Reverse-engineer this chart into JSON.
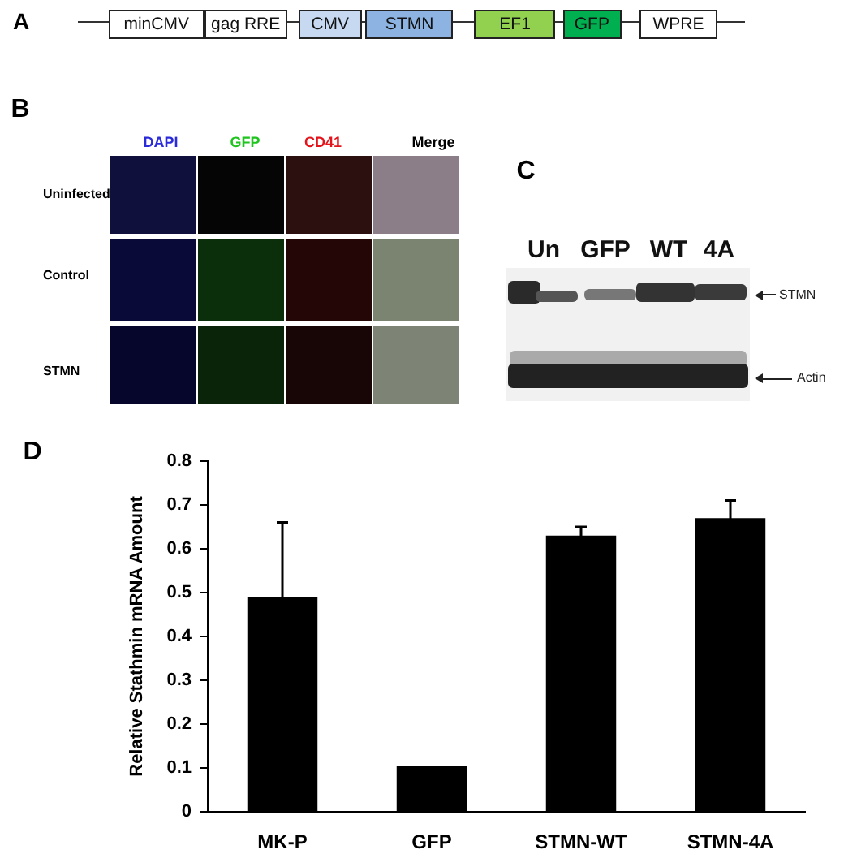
{
  "chart_data": [
    {
      "type": "other",
      "title": "A",
      "annotations": [
        "minCMV",
        "gag RRE",
        "CMV",
        "STMN",
        "EF1",
        "GFP",
        "WPRE"
      ]
    },
    {
      "type": "other",
      "title": "B",
      "categories": [
        "DAPI",
        "GFP",
        "CD41",
        "Merge"
      ],
      "y_categories": [
        "Uninfected",
        "Control",
        "STMN"
      ]
    },
    {
      "type": "other",
      "title": "C",
      "categories": [
        "Un",
        "GFP",
        "WT",
        "4A"
      ],
      "y_categories": [
        "STMN",
        "Actin"
      ]
    },
    {
      "type": "bar",
      "title": "D",
      "categories": [
        "MK-P",
        "GFP",
        "STMN-WT",
        "STMN-4A"
      ],
      "values": [
        0.49,
        0.105,
        0.63,
        0.67
      ],
      "errors": [
        0.17,
        null,
        0.02,
        0.04
      ],
      "color": "#000000",
      "ylabel": "Relative Stathmin mRNA Amount",
      "ylim": [
        0,
        0.8
      ],
      "yticks": [
        0,
        0.1,
        0.2,
        0.3,
        0.4,
        0.5,
        0.6,
        0.7,
        0.8
      ]
    }
  ]
}
